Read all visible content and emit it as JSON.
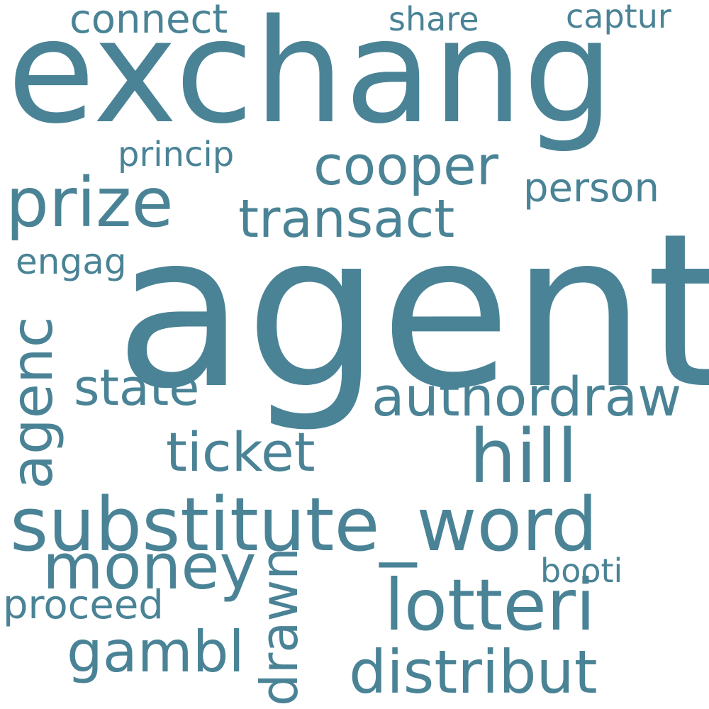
{
  "word_color": "#4a8396",
  "background": "#ffffff",
  "words": {
    "exchang": "exchang",
    "agent": "agent",
    "substitute_word": "substitute_word",
    "prize": "prize",
    "cooper": "cooper",
    "transact": "transact",
    "hill": "hill",
    "money": "money",
    "lotteri": "lotteri",
    "distribut": "distribut",
    "gambl": "gambl",
    "authordraw": "authordraw",
    "ticket": "ticket",
    "state": "state",
    "agenc": "agenc",
    "drawn": "drawn",
    "connect": "connect",
    "share": "share",
    "captur": "captur",
    "princip": "princip",
    "person": "person",
    "engag": "engag",
    "proceed": "proceed",
    "booti": "booti"
  }
}
